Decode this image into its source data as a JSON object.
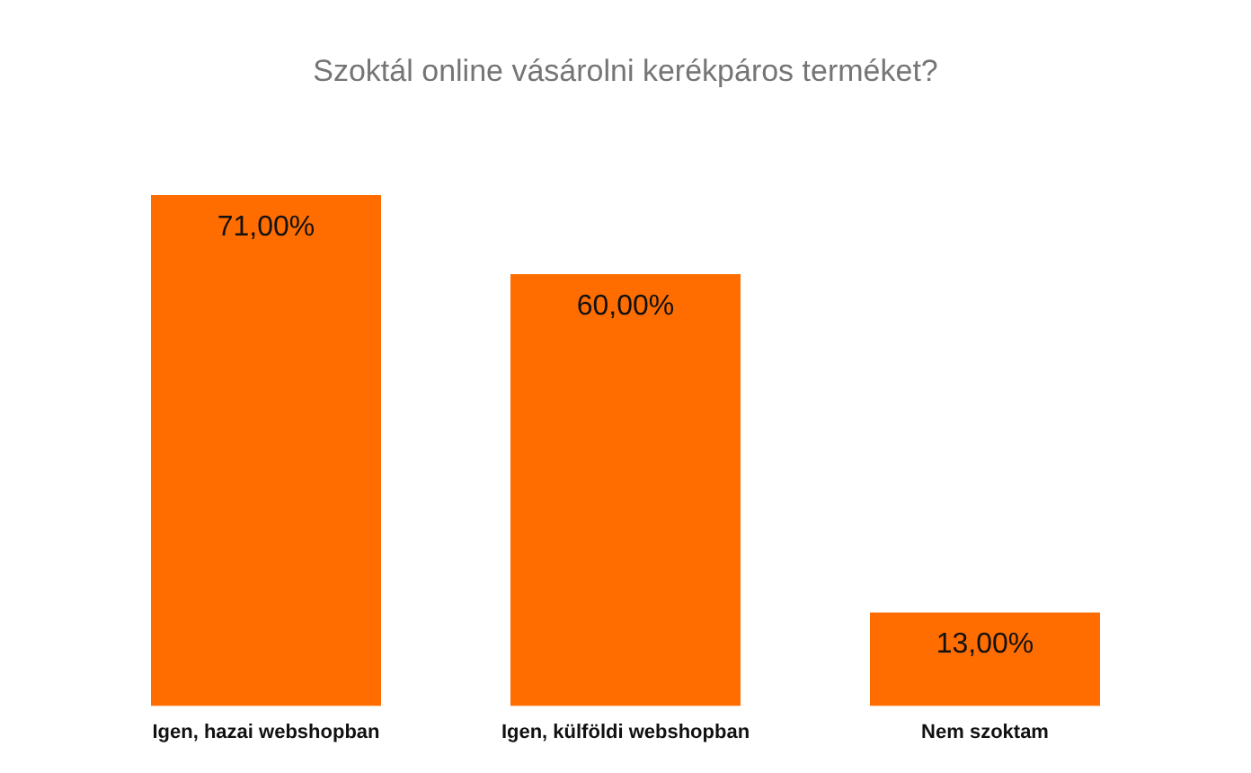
{
  "chart_data": {
    "type": "bar",
    "title": "Szoktál online vásárolni kerékpáros terméket?",
    "categories": [
      "Igen, hazai webshopban",
      "Igen, külföldi webshopban",
      "Nem szoktam"
    ],
    "values": [
      71,
      60,
      13
    ],
    "value_labels": [
      "71,00%",
      "60,00%",
      "13,00%"
    ],
    "color": "#ff6d00",
    "grid": false,
    "legend": false
  }
}
